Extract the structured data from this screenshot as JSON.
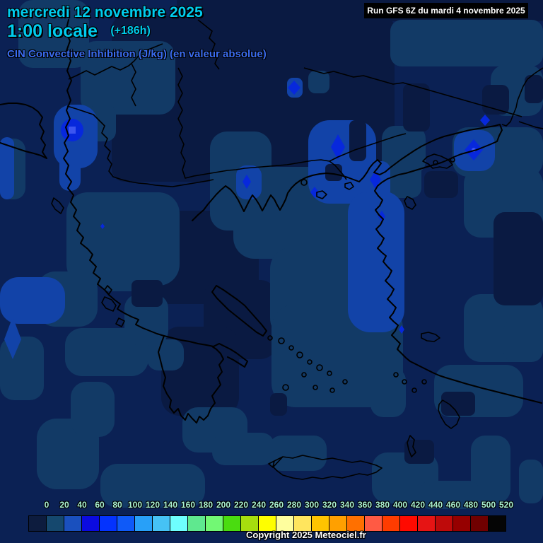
{
  "header": {
    "date_line": "mercredi 12 novembre 2025",
    "time_line": "1:00 locale",
    "forecast_offset": "(+186h)",
    "param_line": "CIN Convective Inhibition (J/kg) (en valeur absolue)",
    "run_label": "Run GFS 6Z du mardi 4 novembre 2025"
  },
  "footer": {
    "copyright": "Copyright 2025 Meteociel.fr"
  },
  "scale": {
    "unit_values": [
      "0",
      "20",
      "40",
      "60",
      "80",
      "100",
      "120",
      "140",
      "160",
      "180",
      "200",
      "220",
      "240",
      "260",
      "280",
      "300",
      "320",
      "340",
      "360",
      "380",
      "400",
      "420",
      "440",
      "460",
      "480",
      "500",
      "520"
    ],
    "colors": [
      "#0d1c3e",
      "#15486e",
      "#1a50be",
      "#0b0be0",
      "#0433fe",
      "#0f5af8",
      "#28a0f8",
      "#46c2f5",
      "#6efefe",
      "#5fe88f",
      "#72f874",
      "#4adc10",
      "#a6de0e",
      "#fefe00",
      "#fefe9e",
      "#ffe55e",
      "#ffc400",
      "#ffa000",
      "#ff7000",
      "#ff5a44",
      "#ff3c00",
      "#ff0a00",
      "#e61414",
      "#be0a0a",
      "#960000",
      "#700000",
      "#050505"
    ]
  },
  "palette": {
    "base": "#0b2154",
    "dark": "#0a1a42",
    "level1": "#123a66",
    "level2": "#1243a8",
    "level3": "#0728dc",
    "core": "#3c55f0",
    "coast": "#000000",
    "titleCyan": "#00ccee",
    "paramBlue": "#3a6cf0",
    "labelMint": "#aaf2d2"
  }
}
